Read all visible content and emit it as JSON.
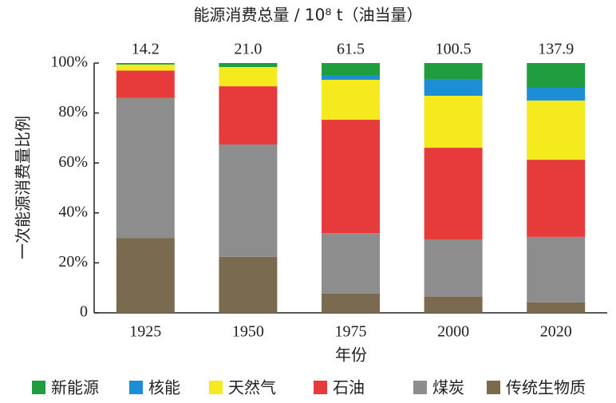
{
  "chart_data": {
    "type": "stacked_bar",
    "title": "能源消费总量 / 10⁸ t（油当量）",
    "x_label": "年份",
    "y_label": "一次能源消费量比例",
    "categories": [
      "1925",
      "1950",
      "1975",
      "2000",
      "2020"
    ],
    "totals": {
      "values": [
        14.2,
        21.0,
        61.5,
        100.5,
        137.9
      ],
      "value_labels": [
        "14.2",
        "21.0",
        "61.5",
        "100.5",
        "137.9"
      ]
    },
    "series": [
      {
        "name": "新能源",
        "color": "#1f9d3f",
        "values": [
          0.6,
          1.6,
          4.8,
          6.4,
          9.9
        ]
      },
      {
        "name": "核能",
        "color": "#1b8ed6",
        "values": [
          0,
          0,
          1.9,
          6.7,
          5.1
        ]
      },
      {
        "name": "天然气",
        "color": "#f4ea1d",
        "values": [
          2.4,
          7.7,
          16,
          20.8,
          23.7
        ]
      },
      {
        "name": "石油",
        "color": "#e73b3b",
        "values": [
          11,
          23.3,
          45.4,
          36.7,
          30.9
        ]
      },
      {
        "name": "煤炭",
        "color": "#8d8d8d",
        "values": [
          56,
          45,
          24.2,
          23,
          26.2
        ]
      },
      {
        "name": "传统生物质",
        "color": "#7a6a50",
        "values": [
          30,
          22.4,
          7.7,
          6.4,
          4.2
        ]
      }
    ],
    "ylim": [
      0,
      100
    ],
    "yticks": [
      0,
      {
        "value": 20,
        "label": "20%"
      },
      {
        "value": 40,
        "label": "40%"
      },
      {
        "value": 60,
        "label": "60%"
      },
      {
        "value": 80,
        "label": "80%"
      },
      {
        "value": 100,
        "label": "100%"
      }
    ]
  }
}
